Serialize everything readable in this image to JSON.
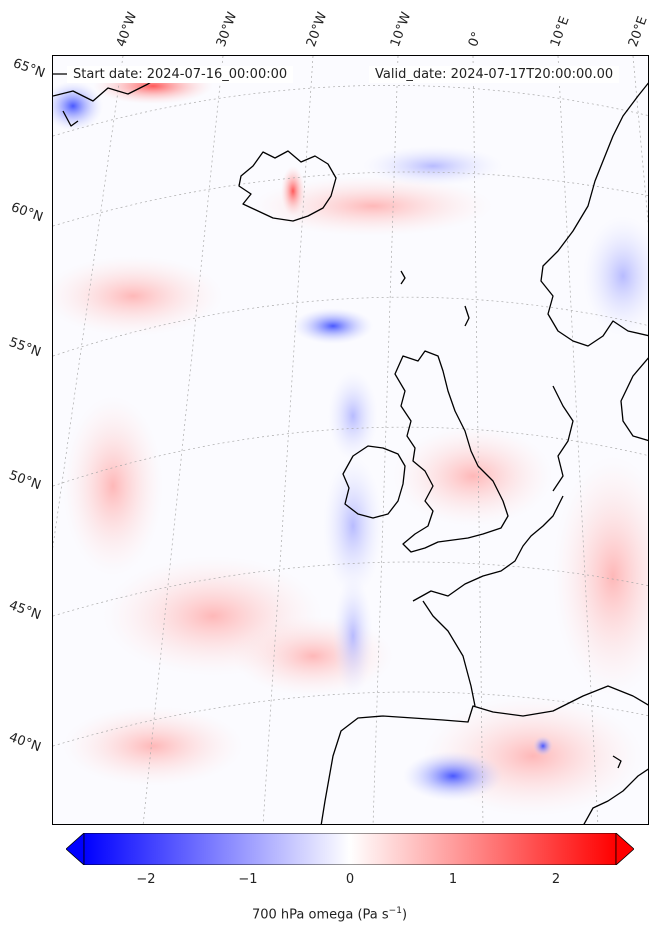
{
  "start_date": "Start date: 2024-07-16_00:00:00",
  "valid_date": "Valid_date: 2024-07-17T20:00:00.00",
  "lon_labels": [
    "40°W",
    "30°W",
    "20°W",
    "10°W",
    "0°",
    "10°E",
    "20°E"
  ],
  "lat_labels": [
    "65°N",
    "60°N",
    "55°N",
    "50°N",
    "45°N",
    "40°N"
  ],
  "colorbar": {
    "ticks": [
      "−2",
      "−1",
      "0",
      "1",
      "2"
    ],
    "title_main": "700 hPa omega (Pa s",
    "title_sup": "−1",
    "title_end": ")",
    "vmin": -2.6,
    "vmax": 2.6,
    "negative_color": "#0000ff",
    "positive_color": "#ff0000",
    "center_color": "#ffffff"
  }
}
